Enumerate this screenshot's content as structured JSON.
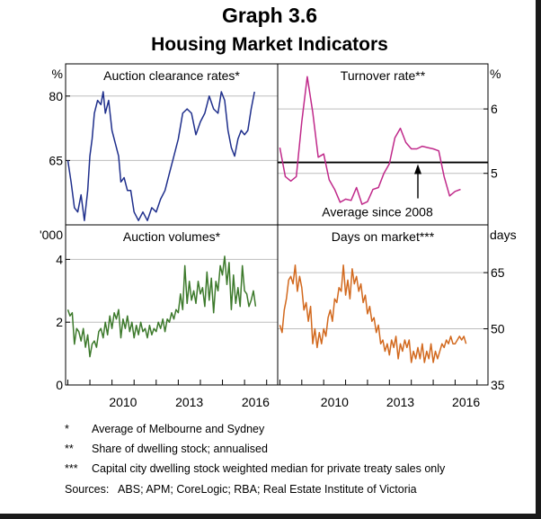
{
  "title": "Graph 3.6",
  "subtitle": "Housing Market Indicators",
  "colors": {
    "auction_rates": "#1f2f8c",
    "turnover": "#c0298a",
    "volumes": "#3d7a2c",
    "days": "#d2691e",
    "axis": "#000000",
    "grid": "#bdbdbd"
  },
  "footnotes": [
    {
      "mark": "*",
      "text": "Average of Melbourne and Sydney"
    },
    {
      "mark": "**",
      "text": "Share of dwelling stock; annualised"
    },
    {
      "mark": "***",
      "text": "Capital city dwelling stock weighted median for private treaty sales only"
    }
  ],
  "sources": "Sources:   ABS; APM; CoreLogic; RBA; Real Estate Institute of Victoria",
  "chart_data": [
    {
      "type": "line",
      "panel": "top-left",
      "title": "Auction clearance rates*",
      "unit": "%",
      "ylim": [
        50,
        87.5
      ],
      "yticks": [
        50,
        65,
        80
      ],
      "yticklabels": [
        "",
        "65",
        "80"
      ],
      "xlim": [
        2007.9,
        2017.5
      ],
      "series": [
        {
          "color": "#1f2f8c",
          "x": [
            2008.0,
            2008.15,
            2008.3,
            2008.45,
            2008.6,
            2008.75,
            2008.9,
            2009.0,
            2009.1,
            2009.2,
            2009.35,
            2009.5,
            2009.6,
            2009.7,
            2009.85,
            2010.0,
            2010.15,
            2010.3,
            2010.4,
            2010.55,
            2010.7,
            2010.85,
            2011.0,
            2011.2,
            2011.4,
            2011.6,
            2011.8,
            2012.0,
            2012.2,
            2012.4,
            2012.6,
            2012.8,
            2013.0,
            2013.2,
            2013.4,
            2013.6,
            2013.8,
            2014.0,
            2014.2,
            2014.4,
            2014.6,
            2014.8,
            2014.95,
            2015.1,
            2015.25,
            2015.4,
            2015.55,
            2015.7,
            2015.85,
            2016.0,
            2016.15,
            2016.3,
            2016.45
          ],
          "y": [
            65,
            60,
            54,
            53,
            57,
            51,
            58,
            66,
            70,
            76,
            79,
            78,
            81,
            76,
            79,
            72,
            69,
            66,
            60,
            61,
            58,
            58,
            53,
            51,
            53,
            51,
            54,
            53,
            56,
            58,
            62,
            66,
            70,
            76,
            77,
            76,
            71,
            74,
            76,
            80,
            77,
            76,
            81,
            79,
            72,
            68,
            66,
            70,
            72,
            71,
            72,
            77,
            81
          ]
        }
      ]
    },
    {
      "type": "line",
      "panel": "top-right",
      "title": "Turnover rate**",
      "unit": "%",
      "ylim": [
        4.2,
        6.7
      ],
      "yticks": [
        5,
        6
      ],
      "yticklabels": [
        "5",
        "6"
      ],
      "xlim": [
        2007.9,
        2017.5
      ],
      "average": {
        "value": 5.17,
        "label": "Average since 2008",
        "arrow_x": 2014.3
      },
      "series": [
        {
          "color": "#c0298a",
          "x": [
            2008.0,
            2008.25,
            2008.5,
            2008.75,
            2009.0,
            2009.25,
            2009.5,
            2009.75,
            2010.0,
            2010.25,
            2010.5,
            2010.75,
            2011.0,
            2011.25,
            2011.5,
            2011.75,
            2012.0,
            2012.25,
            2012.5,
            2012.75,
            2013.0,
            2013.25,
            2013.5,
            2013.75,
            2014.0,
            2014.25,
            2014.5,
            2014.75,
            2015.0,
            2015.25,
            2015.5,
            2015.75,
            2016.0,
            2016.25
          ],
          "y": [
            5.4,
            4.95,
            4.88,
            4.95,
            5.8,
            6.5,
            5.95,
            5.25,
            5.3,
            4.9,
            4.75,
            4.55,
            4.6,
            4.58,
            4.78,
            4.52,
            4.56,
            4.75,
            4.78,
            5.0,
            5.15,
            5.55,
            5.7,
            5.48,
            5.38,
            5.38,
            5.42,
            5.4,
            5.38,
            5.35,
            4.95,
            4.65,
            4.72,
            4.75
          ]
        }
      ]
    },
    {
      "type": "line",
      "panel": "bottom-left",
      "title": "Auction volumes*",
      "unit": "'000",
      "ylim": [
        0,
        5.1
      ],
      "yticks": [
        0,
        2,
        4
      ],
      "yticklabels": [
        "0",
        "2",
        "4"
      ],
      "xlim": [
        2007.9,
        2017.5
      ],
      "xticks": [
        2010,
        2013,
        2016
      ],
      "series": [
        {
          "color": "#3d7a2c",
          "x": [
            2008.0,
            2008.1,
            2008.2,
            2008.3,
            2008.4,
            2008.5,
            2008.6,
            2008.7,
            2008.8,
            2008.9,
            2009.0,
            2009.1,
            2009.2,
            2009.3,
            2009.4,
            2009.5,
            2009.6,
            2009.7,
            2009.8,
            2009.9,
            2010.0,
            2010.1,
            2010.2,
            2010.3,
            2010.4,
            2010.5,
            2010.6,
            2010.7,
            2010.8,
            2010.9,
            2011.0,
            2011.1,
            2011.2,
            2011.3,
            2011.4,
            2011.5,
            2011.6,
            2011.7,
            2011.8,
            2011.9,
            2012.0,
            2012.1,
            2012.2,
            2012.3,
            2012.4,
            2012.5,
            2012.6,
            2012.7,
            2012.8,
            2012.9,
            2013.0,
            2013.1,
            2013.2,
            2013.3,
            2013.4,
            2013.5,
            2013.6,
            2013.7,
            2013.8,
            2013.9,
            2014.0,
            2014.1,
            2014.2,
            2014.3,
            2014.4,
            2014.5,
            2014.6,
            2014.7,
            2014.8,
            2014.9,
            2015.0,
            2015.1,
            2015.2,
            2015.3,
            2015.4,
            2015.5,
            2015.6,
            2015.7,
            2015.8,
            2015.9,
            2016.0,
            2016.1,
            2016.2,
            2016.3,
            2016.4,
            2016.5
          ],
          "y": [
            2.4,
            2.2,
            2.3,
            1.3,
            1.8,
            1.7,
            1.4,
            1.8,
            1.2,
            1.6,
            0.9,
            1.3,
            1.4,
            1.2,
            1.7,
            1.8,
            1.5,
            2.0,
            1.6,
            2.2,
            1.8,
            2.3,
            2.1,
            2.4,
            1.5,
            2.1,
            1.8,
            2.2,
            1.7,
            2.0,
            1.5,
            1.9,
            1.6,
            2.0,
            1.7,
            1.8,
            1.5,
            1.9,
            1.6,
            1.8,
            1.7,
            2.0,
            1.8,
            2.1,
            1.7,
            2.1,
            2.0,
            2.3,
            2.1,
            2.4,
            2.3,
            2.9,
            2.4,
            3.8,
            2.6,
            3.3,
            2.7,
            3.0,
            2.6,
            3.3,
            2.9,
            3.1,
            2.5,
            3.6,
            2.7,
            3.4,
            2.3,
            3.3,
            3.0,
            3.8,
            3.5,
            4.1,
            3.2,
            3.9,
            2.4,
            3.5,
            2.6,
            3.1,
            2.5,
            3.8,
            3.0,
            2.9,
            2.5,
            2.7,
            3.0,
            2.5
          ]
        }
      ]
    },
    {
      "type": "line",
      "panel": "bottom-right",
      "title": "Days on market***",
      "unit": "days",
      "ylim": [
        35,
        77.75
      ],
      "yticks": [
        35,
        50,
        65
      ],
      "yticklabels": [
        "35",
        "50",
        "65"
      ],
      "xlim": [
        2007.9,
        2017.5
      ],
      "xticks": [
        2010,
        2013,
        2016
      ],
      "series": [
        {
          "color": "#d2691e",
          "x": [
            2008.0,
            2008.1,
            2008.2,
            2008.3,
            2008.4,
            2008.5,
            2008.6,
            2008.7,
            2008.8,
            2008.9,
            2009.0,
            2009.1,
            2009.2,
            2009.3,
            2009.4,
            2009.5,
            2009.6,
            2009.7,
            2009.8,
            2009.9,
            2010.0,
            2010.1,
            2010.2,
            2010.3,
            2010.4,
            2010.5,
            2010.6,
            2010.7,
            2010.8,
            2010.9,
            2011.0,
            2011.1,
            2011.2,
            2011.3,
            2011.4,
            2011.5,
            2011.6,
            2011.7,
            2011.8,
            2011.9,
            2012.0,
            2012.1,
            2012.2,
            2012.3,
            2012.4,
            2012.5,
            2012.6,
            2012.7,
            2012.8,
            2012.9,
            2013.0,
            2013.1,
            2013.2,
            2013.3,
            2013.4,
            2013.5,
            2013.6,
            2013.7,
            2013.8,
            2013.9,
            2014.0,
            2014.1,
            2014.2,
            2014.3,
            2014.4,
            2014.5,
            2014.6,
            2014.7,
            2014.8,
            2014.9,
            2015.0,
            2015.1,
            2015.2,
            2015.3,
            2015.4,
            2015.5,
            2015.6,
            2015.7,
            2015.8,
            2015.9,
            2016.0,
            2016.1,
            2016.2,
            2016.3,
            2016.4,
            2016.5
          ],
          "y": [
            51,
            49,
            55,
            58,
            63,
            64,
            62,
            67,
            60,
            64,
            61,
            55,
            57,
            52,
            56,
            46,
            50,
            45,
            49,
            46,
            50,
            48,
            53,
            55,
            52,
            58,
            57,
            61,
            60,
            67,
            59,
            63,
            58,
            66,
            62,
            64,
            60,
            62,
            57,
            59,
            54,
            56,
            52,
            53,
            49,
            51,
            46,
            47,
            44,
            46,
            43,
            47,
            45,
            48,
            42,
            46,
            44,
            47,
            45,
            47,
            41,
            44,
            42,
            45,
            42,
            46,
            41,
            44,
            42,
            46,
            41,
            44,
            42,
            44,
            46,
            45,
            47,
            46,
            48,
            46,
            46,
            47,
            48,
            47,
            48,
            46
          ]
        }
      ]
    }
  ]
}
